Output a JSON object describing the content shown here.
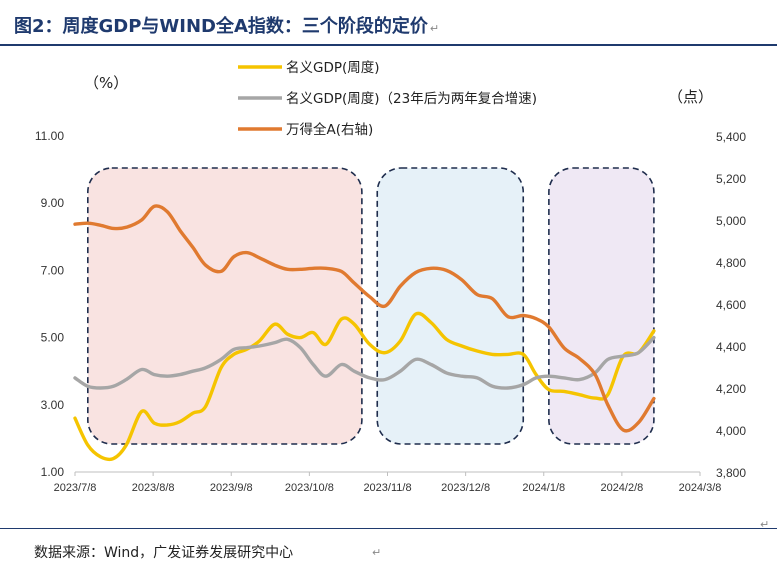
{
  "title": "图2：周度GDP与WIND全A指数：三个阶段的定价",
  "source": "数据来源：Wind，广发证券发展研究中心",
  "colors": {
    "title": "#1f3a6e",
    "nominal_gdp": "#f5c400",
    "nominal_gdp_2y": "#a6a6a6",
    "wind_a": "#e07a30",
    "zone1_fill": "#f9e3e1",
    "zone2_fill": "#e6f1f8",
    "zone3_fill": "#efe8f4",
    "zone_border": "#1f2d4d"
  },
  "chart_data": {
    "type": "line",
    "left_unit": "（%）",
    "right_unit": "（点）",
    "x_ticks": [
      "2023/7/8",
      "2023/8/8",
      "2023/9/8",
      "2023/10/8",
      "2023/11/8",
      "2023/12/8",
      "2024/1/8",
      "2024/2/8",
      "2024/3/8"
    ],
    "x_range": [
      "2023-07-08",
      "2024-03-08"
    ],
    "ylim_left": [
      1.0,
      11.0
    ],
    "yticks_left": [
      "1.00",
      "3.00",
      "5.00",
      "7.00",
      "9.00",
      "11.00"
    ],
    "ylim_right": [
      3800,
      5400
    ],
    "yticks_right": [
      "3,800",
      "4,000",
      "4,200",
      "4,400",
      "4,600",
      "4,800",
      "5,000",
      "5,200",
      "5,400"
    ],
    "legend_position": "top-center",
    "zones": [
      {
        "start": "2023-07-13",
        "end": "2023-10-28"
      },
      {
        "start": "2023-11-03",
        "end": "2023-12-30"
      },
      {
        "start": "2024-01-09",
        "end": "2024-02-19"
      }
    ],
    "series": [
      {
        "name": "名义GDP(周度)",
        "axis": "left",
        "points": [
          [
            "2023-07-08",
            2.6
          ],
          [
            "2023-07-13",
            1.8
          ],
          [
            "2023-07-18",
            1.45
          ],
          [
            "2023-07-23",
            1.4
          ],
          [
            "2023-07-28",
            1.8
          ],
          [
            "2023-08-03",
            2.8
          ],
          [
            "2023-08-08",
            2.45
          ],
          [
            "2023-08-13",
            2.4
          ],
          [
            "2023-08-18",
            2.5
          ],
          [
            "2023-08-23",
            2.75
          ],
          [
            "2023-08-28",
            2.95
          ],
          [
            "2023-09-03",
            4.1
          ],
          [
            "2023-09-08",
            4.5
          ],
          [
            "2023-09-13",
            4.65
          ],
          [
            "2023-09-18",
            4.9
          ],
          [
            "2023-09-24",
            5.4
          ],
          [
            "2023-09-29",
            5.1
          ],
          [
            "2023-10-04",
            5.0
          ],
          [
            "2023-10-09",
            5.15
          ],
          [
            "2023-10-14",
            4.8
          ],
          [
            "2023-10-20",
            5.55
          ],
          [
            "2023-10-25",
            5.4
          ],
          [
            "2023-10-31",
            4.8
          ],
          [
            "2023-11-06",
            4.55
          ],
          [
            "2023-11-12",
            4.9
          ],
          [
            "2023-11-18",
            5.7
          ],
          [
            "2023-11-24",
            5.45
          ],
          [
            "2023-11-30",
            4.95
          ],
          [
            "2023-12-06",
            4.75
          ],
          [
            "2023-12-12",
            4.6
          ],
          [
            "2023-12-18",
            4.5
          ],
          [
            "2023-12-24",
            4.5
          ],
          [
            "2023-12-30",
            4.5
          ],
          [
            "2024-01-04",
            3.9
          ],
          [
            "2024-01-09",
            3.45
          ],
          [
            "2024-01-15",
            3.4
          ],
          [
            "2024-01-21",
            3.3
          ],
          [
            "2024-01-27",
            3.2
          ],
          [
            "2024-02-01",
            3.3
          ],
          [
            "2024-02-07",
            4.45
          ],
          [
            "2024-02-13",
            4.55
          ],
          [
            "2024-02-19",
            5.2
          ]
        ]
      },
      {
        "name": "名义GDP(周度)（23年后为两年复合增速)",
        "axis": "left",
        "points": [
          [
            "2023-07-08",
            3.8
          ],
          [
            "2023-07-13",
            3.55
          ],
          [
            "2023-07-18",
            3.5
          ],
          [
            "2023-07-23",
            3.55
          ],
          [
            "2023-07-28",
            3.75
          ],
          [
            "2023-08-03",
            4.05
          ],
          [
            "2023-08-08",
            3.9
          ],
          [
            "2023-08-13",
            3.85
          ],
          [
            "2023-08-18",
            3.9
          ],
          [
            "2023-08-23",
            4.0
          ],
          [
            "2023-08-28",
            4.1
          ],
          [
            "2023-09-03",
            4.35
          ],
          [
            "2023-09-08",
            4.65
          ],
          [
            "2023-09-13",
            4.7
          ],
          [
            "2023-09-18",
            4.75
          ],
          [
            "2023-09-24",
            4.85
          ],
          [
            "2023-09-29",
            4.95
          ],
          [
            "2023-10-04",
            4.7
          ],
          [
            "2023-10-09",
            4.2
          ],
          [
            "2023-10-14",
            3.85
          ],
          [
            "2023-10-20",
            4.2
          ],
          [
            "2023-10-25",
            4.0
          ],
          [
            "2023-10-31",
            3.8
          ],
          [
            "2023-11-06",
            3.75
          ],
          [
            "2023-11-12",
            4.0
          ],
          [
            "2023-11-18",
            4.35
          ],
          [
            "2023-11-24",
            4.2
          ],
          [
            "2023-11-30",
            3.95
          ],
          [
            "2023-12-06",
            3.85
          ],
          [
            "2023-12-12",
            3.8
          ],
          [
            "2023-12-18",
            3.55
          ],
          [
            "2023-12-24",
            3.5
          ],
          [
            "2023-12-30",
            3.6
          ],
          [
            "2024-01-04",
            3.8
          ],
          [
            "2024-01-09",
            3.85
          ],
          [
            "2024-01-15",
            3.8
          ],
          [
            "2024-01-21",
            3.75
          ],
          [
            "2024-01-27",
            3.95
          ],
          [
            "2024-02-01",
            4.35
          ],
          [
            "2024-02-07",
            4.45
          ],
          [
            "2024-02-13",
            4.55
          ],
          [
            "2024-02-19",
            5.0
          ]
        ]
      },
      {
        "name": "万得全A(右轴)",
        "axis": "right",
        "points": [
          [
            "2023-07-08",
            4980
          ],
          [
            "2023-07-13",
            4985
          ],
          [
            "2023-07-18",
            4975
          ],
          [
            "2023-07-23",
            4960
          ],
          [
            "2023-07-28",
            4965
          ],
          [
            "2023-08-03",
            5000
          ],
          [
            "2023-08-08",
            5065
          ],
          [
            "2023-08-13",
            5040
          ],
          [
            "2023-08-18",
            4950
          ],
          [
            "2023-08-23",
            4870
          ],
          [
            "2023-08-28",
            4785
          ],
          [
            "2023-09-03",
            4755
          ],
          [
            "2023-09-08",
            4825
          ],
          [
            "2023-09-13",
            4845
          ],
          [
            "2023-09-18",
            4820
          ],
          [
            "2023-09-24",
            4785
          ],
          [
            "2023-09-29",
            4765
          ],
          [
            "2023-10-04",
            4765
          ],
          [
            "2023-10-09",
            4770
          ],
          [
            "2023-10-14",
            4770
          ],
          [
            "2023-10-20",
            4755
          ],
          [
            "2023-10-25",
            4700
          ],
          [
            "2023-10-31",
            4635
          ],
          [
            "2023-11-06",
            4590
          ],
          [
            "2023-11-12",
            4685
          ],
          [
            "2023-11-18",
            4750
          ],
          [
            "2023-11-24",
            4770
          ],
          [
            "2023-11-30",
            4760
          ],
          [
            "2023-12-06",
            4715
          ],
          [
            "2023-12-12",
            4645
          ],
          [
            "2023-12-18",
            4625
          ],
          [
            "2023-12-24",
            4540
          ],
          [
            "2023-12-30",
            4545
          ],
          [
            "2024-01-04",
            4530
          ],
          [
            "2024-01-09",
            4490
          ],
          [
            "2024-01-15",
            4390
          ],
          [
            "2024-01-21",
            4340
          ],
          [
            "2024-01-27",
            4265
          ],
          [
            "2024-02-01",
            4120
          ],
          [
            "2024-02-07",
            4000
          ],
          [
            "2024-02-13",
            4035
          ],
          [
            "2024-02-19",
            4150
          ]
        ]
      }
    ]
  }
}
